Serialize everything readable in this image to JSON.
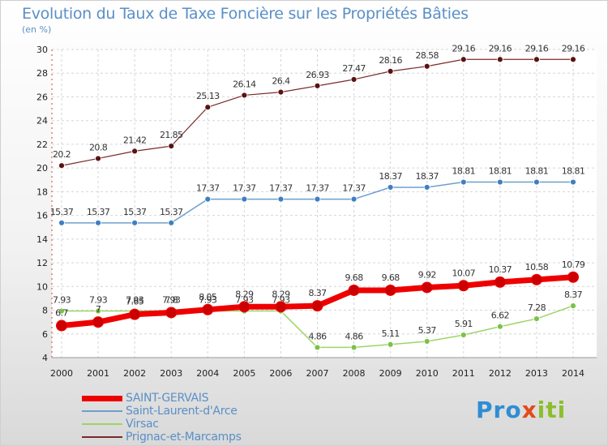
{
  "title": "Evolution du Taux de Taxe Foncière sur les Propriétés Bâties",
  "unit_label": "(en %)",
  "logo": {
    "parts": [
      "Pro",
      "x",
      "iti"
    ],
    "colors": [
      "#2f8dd4",
      "#e24b1a",
      "#8bbf2a"
    ]
  },
  "chart_data": {
    "type": "line",
    "title": "Evolution du Taux de Taxe Foncière sur les Propriétés Bâties",
    "ylabel": "(en %)",
    "xlabel": "",
    "ylim": [
      4,
      30
    ],
    "yticks": [
      4,
      6,
      8,
      10,
      12,
      14,
      16,
      18,
      20,
      22,
      24,
      26,
      28,
      30
    ],
    "x": [
      "2000",
      "2001",
      "2002",
      "2003",
      "2004",
      "2005",
      "2006",
      "2007",
      "2008",
      "2009",
      "2010",
      "2011",
      "2012",
      "2013",
      "2014"
    ],
    "series": [
      {
        "name": "Prignac-et-Marcamps",
        "color": "#7a2a2a",
        "marker": "#5a1212",
        "width": 1.2,
        "values": [
          20.2,
          20.8,
          21.42,
          21.85,
          25.13,
          26.14,
          26.4,
          26.93,
          27.47,
          28.16,
          28.58,
          29.16,
          29.16,
          29.16,
          29.16
        ],
        "labels": [
          "20.2",
          "20.8",
          "21.42",
          "21.85",
          "25.13",
          "26.14",
          "26.4",
          "26.93",
          "27.47",
          "28.16",
          "28.58",
          "29.16",
          "29.16",
          "29.16",
          "29.16"
        ]
      },
      {
        "name": "Saint-Laurent-d'Arce",
        "color": "#6e9fce",
        "marker": "#3f7fc0",
        "width": 1.5,
        "values": [
          15.37,
          15.37,
          15.37,
          15.37,
          17.37,
          17.37,
          17.37,
          17.37,
          17.37,
          18.37,
          18.37,
          18.81,
          18.81,
          18.81,
          18.81
        ],
        "labels": [
          "15.37",
          "15.37",
          "15.37",
          "15.37",
          "17.37",
          "17.37",
          "17.37",
          "17.37",
          "17.37",
          "18.37",
          "18.37",
          "18.81",
          "18.81",
          "18.81",
          "18.81"
        ]
      },
      {
        "name": "Virsac",
        "color": "#9ed46a",
        "marker": "#7cc247",
        "width": 1.5,
        "values": [
          7.93,
          7.93,
          7.93,
          7.93,
          7.93,
          7.93,
          7.93,
          4.86,
          4.86,
          5.11,
          5.37,
          5.91,
          6.62,
          7.28,
          8.37
        ],
        "labels": [
          "7.93",
          "7.93",
          "7.93",
          "7.93",
          "7.93",
          "7.93",
          "7.93",
          "4.86",
          "4.86",
          "5.11",
          "5.37",
          "5.91",
          "6.62",
          "7.28",
          "8.37"
        ]
      },
      {
        "name": "SAINT-GERVAIS",
        "color": "#ee0000",
        "marker": "#cc0000",
        "width": 7,
        "values": [
          6.7,
          7.0,
          7.65,
          7.8,
          8.05,
          8.29,
          8.29,
          8.37,
          9.68,
          9.68,
          9.92,
          10.07,
          10.37,
          10.58,
          10.79
        ],
        "labels": [
          "6.7",
          "7",
          "7.65",
          "7.8",
          "8.05",
          "8.29",
          "8.29",
          "8.37",
          "9.68",
          "9.68",
          "9.92",
          "10.07",
          "10.37",
          "10.58",
          "10.79"
        ]
      }
    ]
  },
  "legend": [
    {
      "name": "SAINT-GERVAIS",
      "color": "#ee0000",
      "thickness": 7
    },
    {
      "name": "Saint-Laurent-d'Arce",
      "color": "#6e9fce",
      "thickness": 2
    },
    {
      "name": "Virsac",
      "color": "#9ed46a",
      "thickness": 2
    },
    {
      "name": "Prignac-et-Marcamps",
      "color": "#7a2a2a",
      "thickness": 2
    }
  ]
}
